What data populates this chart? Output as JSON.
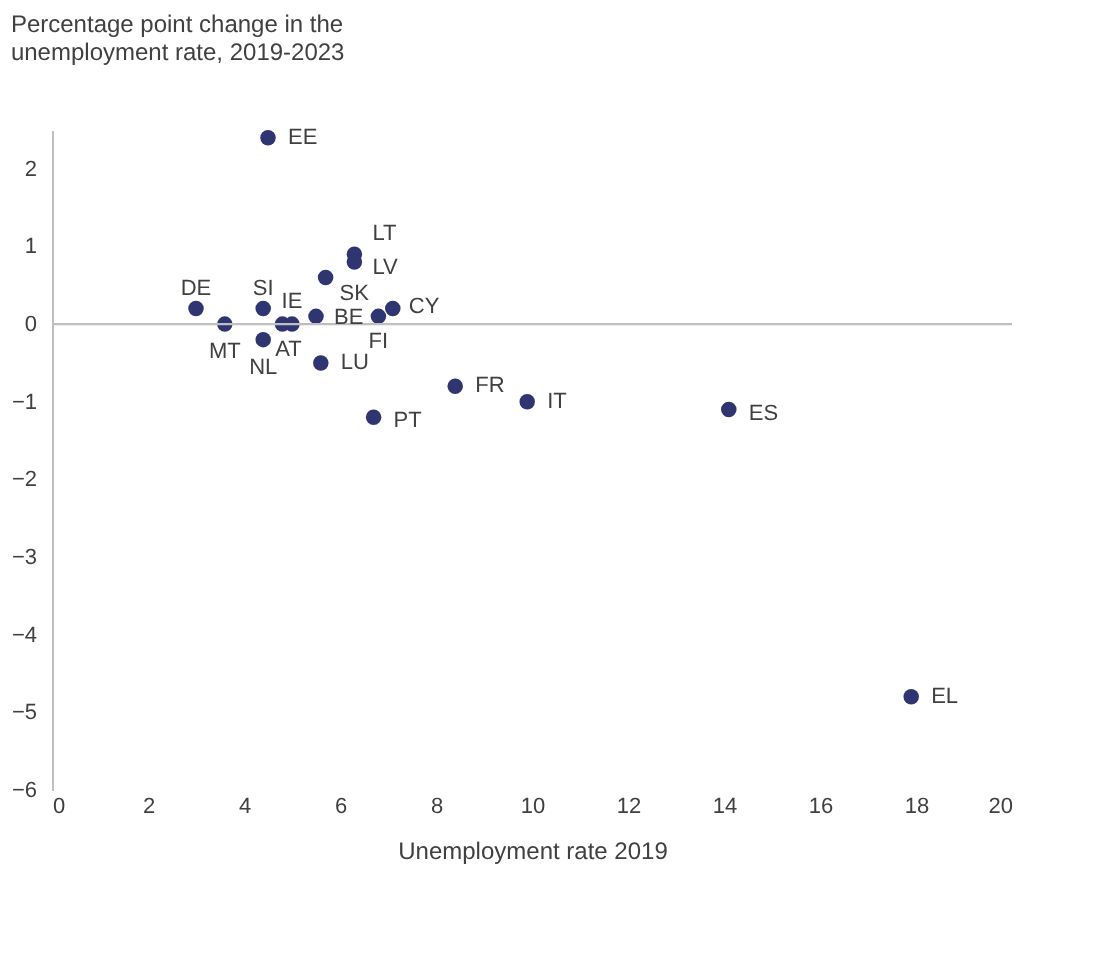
{
  "chart_data": {
    "type": "scatter",
    "title": [
      "Percentage point change in the",
      "unemployment rate, 2019-2023"
    ],
    "xlabel": "Unemployment rate 2019",
    "x": [
      4.5,
      6.3,
      6.3,
      5.7,
      3.0,
      4.4,
      3.6,
      4.4,
      4.8,
      5.0,
      5.5,
      6.8,
      7.1,
      5.6,
      6.7,
      8.4,
      9.9,
      14.1,
      17.9
    ],
    "series": [
      {
        "color": "#2e3570",
        "values": [
          2.4,
          0.9,
          0.8,
          0.6,
          0.2,
          0.2,
          0.0,
          -0.2,
          0.0,
          0.0,
          0.1,
          0.1,
          0.2,
          -0.5,
          -1.2,
          -0.8,
          -1.0,
          -1.1,
          -4.8
        ]
      }
    ],
    "annotations": [
      {
        "text": "EE",
        "x": 4.5,
        "y": 2.4
      },
      {
        "text": "LT",
        "x": 6.3,
        "y": 0.9
      },
      {
        "text": "LV",
        "x": 6.3,
        "y": 0.8
      },
      {
        "text": "SK",
        "x": 5.7,
        "y": 0.6
      },
      {
        "text": "DE",
        "x": 3.0,
        "y": 0.2
      },
      {
        "text": "SI",
        "x": 4.4,
        "y": 0.2
      },
      {
        "text": "MT",
        "x": 3.6,
        "y": 0.0
      },
      {
        "text": "NL",
        "x": 4.4,
        "y": -0.2
      },
      {
        "text": "AT",
        "x": 4.8,
        "y": 0.0
      },
      {
        "text": "IE",
        "x": 5.0,
        "y": 0.0
      },
      {
        "text": "BE",
        "x": 5.5,
        "y": 0.1
      },
      {
        "text": "FI",
        "x": 6.8,
        "y": 0.1
      },
      {
        "text": "CY",
        "x": 7.1,
        "y": 0.2
      },
      {
        "text": "LU",
        "x": 5.6,
        "y": -0.5
      },
      {
        "text": "PT",
        "x": 6.7,
        "y": -1.2
      },
      {
        "text": "FR",
        "x": 8.4,
        "y": -0.8
      },
      {
        "text": "IT",
        "x": 9.9,
        "y": -1.0
      },
      {
        "text": "ES",
        "x": 14.1,
        "y": -1.1
      },
      {
        "text": "EL",
        "x": 17.9,
        "y": -4.8
      }
    ],
    "xlim": [
      0,
      20
    ],
    "xticks": [
      0,
      2,
      4,
      6,
      8,
      10,
      12,
      14,
      16,
      18,
      20
    ],
    "ylim": [
      -6,
      2.5
    ],
    "yticks": [
      -6,
      -5,
      -4,
      -3,
      -2,
      -1,
      0,
      1,
      2
    ],
    "ref_lines": [
      {
        "axis": "y",
        "value": 0,
        "color": "#bfbfbf"
      }
    ],
    "grid": false,
    "marker": "circle"
  }
}
